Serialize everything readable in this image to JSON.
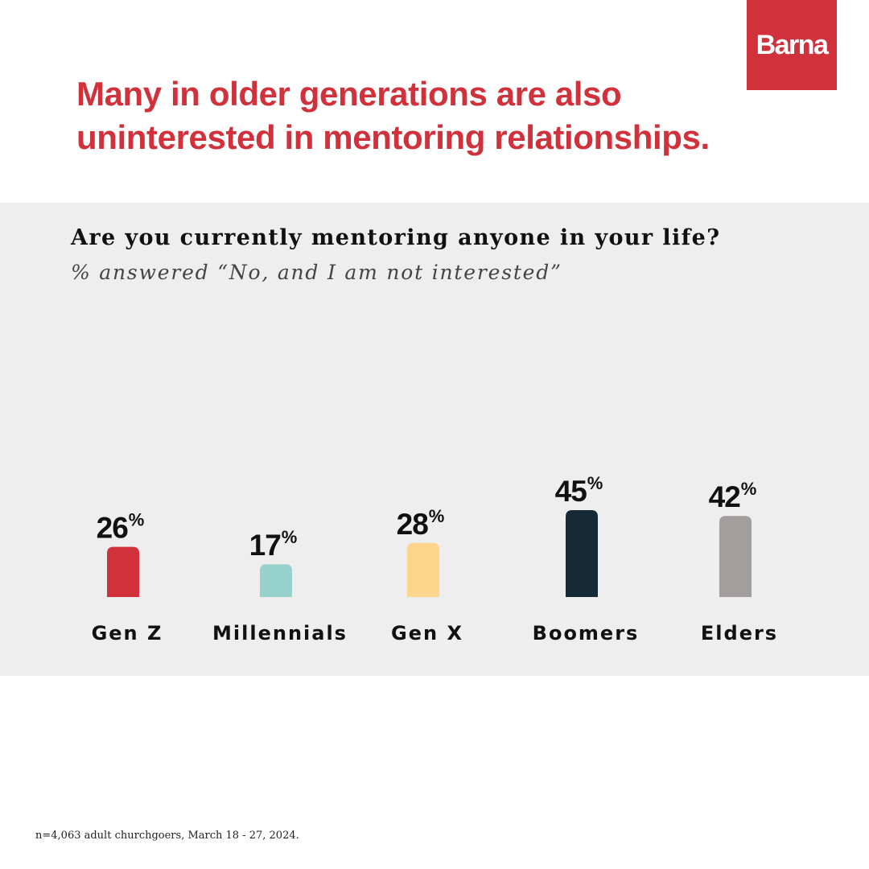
{
  "logo": {
    "text": "Barna"
  },
  "headline": "Many in older generations are also uninterested in mentoring relationships.",
  "chart_data": {
    "type": "bar",
    "title": "Are you currently mentoring anyone in your life?",
    "subtitle": "% answered “No, and I am not interested”",
    "categories": [
      "Gen Z",
      "Millennials",
      "Gen X",
      "Boomers",
      "Elders"
    ],
    "values": [
      26,
      17,
      28,
      45,
      42
    ],
    "value_suffix": "%",
    "colors": [
      "#d0313b",
      "#97d3cc",
      "#fdd58c",
      "#162a35",
      "#a29e9d"
    ],
    "grid": false,
    "legend": "none"
  },
  "footnote": "n=4,063 adult churchgoers, March 18 - 27, 2024."
}
